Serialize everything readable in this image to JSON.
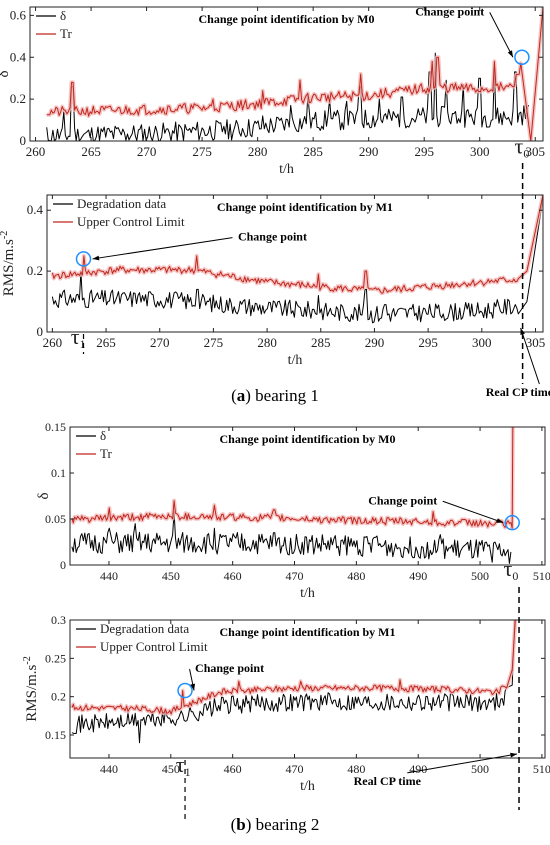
{
  "captions": {
    "a": {
      "tag": "a",
      "text": "bearing 1"
    },
    "b": {
      "tag": "b",
      "text": "bearing 2"
    }
  },
  "colors": {
    "delta": "#000000",
    "threshold": "#c0281e",
    "halo": "#f2b6b6",
    "marker": "#1e90ff"
  },
  "chart_data": [
    {
      "id": "b1_m0",
      "type": "line",
      "title": "Change point identification by M0",
      "xlabel": "t/h",
      "ylabel": "δ",
      "xlim": [
        259.5,
        305.7
      ],
      "ylim": [
        0,
        0.64
      ],
      "xticks": [
        260,
        265,
        270,
        275,
        280,
        285,
        290,
        295,
        300,
        305
      ],
      "yticks": [
        0,
        0.2,
        0.4,
        0.6
      ],
      "ytick_labels": [
        "0",
        "0.2",
        "0.4",
        "0.6"
      ],
      "legend": {
        "placement": "top-left",
        "entries": [
          "δ",
          "Tr"
        ]
      },
      "series": [
        {
          "name": "δ",
          "color": "#000000",
          "base": [
            [
              261,
              0.01
            ],
            [
              270,
              0.02
            ],
            [
              278,
              0.04
            ],
            [
              285,
              0.08
            ],
            [
              295,
              0.1
            ],
            [
              303,
              0.1
            ],
            [
              304.5,
              0.12
            ]
          ],
          "noise": 0.05,
          "spikes": [
            [
              262.5,
              0.14
            ],
            [
              263.3,
              0.26
            ],
            [
              268,
              0.04
            ],
            [
              274.3,
              0.06
            ],
            [
              277,
              0.07
            ],
            [
              280.5,
              0.12
            ],
            [
              283,
              0.17
            ],
            [
              284.5,
              0.22
            ],
            [
              286.5,
              0.2
            ],
            [
              288,
              0.19
            ],
            [
              289.2,
              0.26
            ],
            [
              291,
              0.2
            ],
            [
              293,
              0.21
            ],
            [
              295.5,
              0.33
            ],
            [
              296,
              0.42
            ],
            [
              297,
              0.29
            ],
            [
              298.5,
              0.27
            ],
            [
              300,
              0.3
            ],
            [
              301.3,
              0.34
            ],
            [
              303.2,
              0.33
            ]
          ],
          "seed": 11
        },
        {
          "name": "Tr",
          "color": "#c0281e",
          "halo": true,
          "base": [
            [
              261,
              0.13
            ],
            [
              268,
              0.14
            ],
            [
              275,
              0.15
            ],
            [
              280,
              0.17
            ],
            [
              285,
              0.2
            ],
            [
              290,
              0.21
            ],
            [
              296,
              0.25
            ],
            [
              300,
              0.24
            ],
            [
              303,
              0.25
            ],
            [
              303.8,
              0.36
            ]
          ],
          "noise": 0.025,
          "spikes": [
            [
              263.3,
              0.28
            ],
            [
              276,
              0.2
            ],
            [
              280.5,
              0.24
            ],
            [
              283.8,
              0.29
            ],
            [
              289.3,
              0.32
            ],
            [
              295.7,
              0.38
            ],
            [
              296.2,
              0.4
            ],
            [
              301.3,
              0.38
            ]
          ],
          "seed": 21,
          "tail": [
            [
              304.6,
              0.0
            ],
            [
              305.7,
              0.64
            ]
          ]
        }
      ],
      "annotations": [
        {
          "text": "Change point",
          "x": 297.3,
          "y": 0.6
        },
        {
          "text": "τ0",
          "x": 303.8,
          "y": -0.06,
          "base": "τ",
          "sub": "0"
        }
      ],
      "change_point": {
        "x": 303.8,
        "y": 0.4
      }
    },
    {
      "id": "b1_m1",
      "type": "line",
      "title": "Change point identification by M1",
      "xlabel": "t/h",
      "ylabel": "RMS/m.s-2",
      "ylabel_base": "RMS/m.s",
      "ylabel_sup": "-2",
      "xlim": [
        259.5,
        305.7
      ],
      "ylim": [
        0,
        0.45
      ],
      "xticks": [
        260,
        265,
        270,
        275,
        280,
        285,
        290,
        295,
        300,
        305
      ],
      "yticks": [
        0,
        0.2,
        0.4
      ],
      "ytick_labels": [
        "0",
        "0.2",
        "0.4"
      ],
      "legend": {
        "placement": "top-left",
        "entries": [
          "Degradation data",
          "Upper Control Limit"
        ]
      },
      "series": [
        {
          "name": "Degradation data",
          "color": "#000000",
          "base": [
            [
              260,
              0.1
            ],
            [
              270,
              0.1
            ],
            [
              280,
              0.07
            ],
            [
              290,
              0.05
            ],
            [
              300,
              0.06
            ],
            [
              303.5,
              0.08
            ]
          ],
          "noise": 0.03,
          "spikes": [
            [
              262.7,
              0.2
            ],
            [
              268,
              0.12
            ],
            [
              273.5,
              0.14
            ],
            [
              284.8,
              0.12
            ],
            [
              289.2,
              0.14
            ],
            [
              291,
              0.09
            ]
          ],
          "seed": 31,
          "tail": [
            [
              304.2,
              0.1
            ],
            [
              305.7,
              0.44
            ]
          ]
        },
        {
          "name": "Upper Control Limit",
          "color": "#c0281e",
          "halo": true,
          "base": [
            [
              260,
              0.18
            ],
            [
              266,
              0.2
            ],
            [
              273,
              0.2
            ],
            [
              280,
              0.16
            ],
            [
              290,
              0.13
            ],
            [
              300,
              0.16
            ],
            [
              303.5,
              0.17
            ]
          ],
          "noise": 0.012,
          "spikes": [
            [
              262.9,
              0.25
            ],
            [
              273.4,
              0.25
            ],
            [
              284.8,
              0.19
            ],
            [
              289.2,
              0.2
            ],
            [
              303.8,
              0.28
            ]
          ],
          "seed": 41,
          "tail": [
            [
              304.2,
              0.2
            ],
            [
              305.7,
              0.45
            ]
          ]
        }
      ],
      "annotations": [
        {
          "text": "Change point",
          "x": 280.5,
          "y": 0.3
        },
        {
          "text": "τ1",
          "x": 262.4,
          "y": -0.04,
          "base": "τ",
          "sub": "1"
        },
        {
          "text": "Real CP time",
          "x": 303.5,
          "y": -0.21
        }
      ],
      "change_point": {
        "x": 262.9,
        "y": 0.24
      },
      "real_cp_x": 303.8
    },
    {
      "id": "b2_m0",
      "type": "line",
      "title": "Change point identification by M0",
      "xlabel": "t/h",
      "ylabel": "δ",
      "xlim": [
        433.7,
        510.5
      ],
      "ylim": [
        0,
        0.15
      ],
      "xticks": [
        440,
        450,
        460,
        470,
        480,
        490,
        500,
        510
      ],
      "yticks": [
        0,
        0.05,
        0.1,
        0.15
      ],
      "ytick_labels": [
        "0",
        "0.05",
        "0.1",
        "0.15"
      ],
      "legend": {
        "placement": "top-left",
        "entries": [
          "δ",
          "Tr"
        ]
      },
      "series": [
        {
          "name": "δ",
          "color": "#000000",
          "base": [
            [
              434,
              0.02
            ],
            [
              460,
              0.02
            ],
            [
              480,
              0.018
            ],
            [
              500,
              0.012
            ],
            [
              505,
              0.01
            ]
          ],
          "noise": 0.012,
          "spikes": [
            [
              440,
              0.04
            ],
            [
              444.3,
              0.045
            ],
            [
              450.5,
              0.058
            ],
            [
              457,
              0.04
            ],
            [
              466.7,
              0.035
            ],
            [
              483,
              0.03
            ],
            [
              493.5,
              0.033
            ]
          ],
          "seed": 51
        },
        {
          "name": "Tr",
          "color": "#c0281e",
          "halo": true,
          "base": [
            [
              434,
              0.048
            ],
            [
              450,
              0.052
            ],
            [
              465,
              0.05
            ],
            [
              480,
              0.047
            ],
            [
              495,
              0.045
            ],
            [
              505,
              0.043
            ]
          ],
          "noise": 0.004,
          "spikes": [
            [
              440,
              0.062
            ],
            [
              450.6,
              0.07
            ],
            [
              457.1,
              0.065
            ],
            [
              466.7,
              0.06
            ],
            [
              492.5,
              0.058
            ]
          ],
          "seed": 61,
          "tail": [
            [
              505.2,
              0.04
            ],
            [
              505.3,
              0.15
            ]
          ]
        }
      ],
      "annotations": [
        {
          "text": "Change point",
          "x": 487.5,
          "y": 0.066
        },
        {
          "text": "τ0",
          "x": 505,
          "y": -0.012,
          "base": "τ",
          "sub": "0"
        }
      ],
      "change_point": {
        "x": 505.2,
        "y": 0.046
      }
    },
    {
      "id": "b2_m1",
      "type": "line",
      "title": "Change point identification by M1",
      "xlabel": "t/h",
      "ylabel": "RMS/m.s-2",
      "ylabel_base": "RMS/m.s",
      "ylabel_sup": "-2",
      "xlim": [
        433.7,
        510.5
      ],
      "ylim": [
        0.12,
        0.3
      ],
      "xticks": [
        440,
        450,
        460,
        470,
        480,
        490,
        500,
        510
      ],
      "yticks": [
        0.15,
        0.2,
        0.25,
        0.3
      ],
      "ytick_labels": [
        "0.15",
        "0.2",
        "0.25",
        "0.3"
      ],
      "legend": {
        "placement": "top-left",
        "entries": [
          "Degradation data",
          "Upper Control Limit"
        ]
      },
      "series": [
        {
          "name": "Degradation data",
          "color": "#000000",
          "base": [
            [
              434,
              0.16
            ],
            [
              445,
              0.165
            ],
            [
              452,
              0.17
            ],
            [
              458,
              0.185
            ],
            [
              470,
              0.19
            ],
            [
              480,
              0.19
            ],
            [
              490,
              0.19
            ],
            [
              502,
              0.188
            ],
            [
              504.5,
              0.2
            ]
          ],
          "noise": 0.012,
          "spikes": [
            [
              445,
              0.14
            ]
          ],
          "seed": 71,
          "tail": [
            [
              505.2,
              0.215
            ],
            [
              505.6,
              0.3
            ]
          ]
        },
        {
          "name": "Upper Control Limit",
          "color": "#c0281e",
          "halo": true,
          "base": [
            [
              434,
              0.185
            ],
            [
              445,
              0.183
            ],
            [
              450,
              0.18
            ],
            [
              458,
              0.205
            ],
            [
              470,
              0.21
            ],
            [
              485,
              0.21
            ],
            [
              495,
              0.208
            ],
            [
              503,
              0.205
            ],
            [
              504.5,
              0.215
            ]
          ],
          "noise": 0.004,
          "spikes": [
            [
              452,
              0.208
            ],
            [
              461,
              0.22
            ],
            [
              471,
              0.22
            ],
            [
              487,
              0.222
            ]
          ],
          "seed": 81,
          "tail": [
            [
              505.2,
              0.235
            ],
            [
              505.7,
              0.3
            ]
          ]
        }
      ],
      "annotations": [
        {
          "text": "Change point",
          "x": 459.5,
          "y": 0.232
        },
        {
          "text": "τ1",
          "x": 452,
          "y": 0.102,
          "base": "τ",
          "sub": "1"
        },
        {
          "text": "Real CP time",
          "x": 485,
          "y": 0.085
        }
      ],
      "change_point": {
        "x": 452.3,
        "y": 0.208
      },
      "real_cp_x": 506.3
    }
  ]
}
